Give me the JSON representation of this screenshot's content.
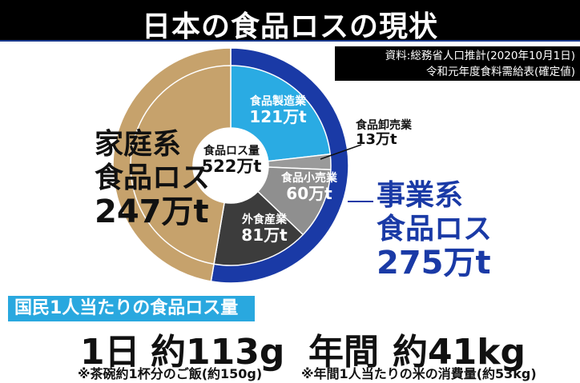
{
  "title": "日本の食品ロスの現状",
  "source": {
    "line1": "資料:総務省人口推計(2020年10月1日)",
    "line2": "令和元年度食料需給表(確定値)"
  },
  "chart_data": {
    "type": "pie",
    "style": "nested-donut",
    "center_label": "食品ロス量",
    "center_value": "522万t",
    "total": 522,
    "unit": "万t",
    "outer_ring": [
      {
        "name": "事業系\n食品ロス",
        "label_line1": "事業系",
        "label_line2": "食品ロス",
        "value": 275,
        "value_label": "275万t",
        "color": "#1a3aa6"
      },
      {
        "name": "家庭系\n食品ロス",
        "label_line1": "家庭系",
        "label_line2": "食品ロス",
        "value": 247,
        "value_label": "247万t",
        "color": "#c6a26c"
      }
    ],
    "inner_ring": [
      {
        "name": "食品製造業",
        "value": 121,
        "value_label": "121万t",
        "color": "#2aabe3"
      },
      {
        "name": "食品卸売業",
        "value": 13,
        "value_label": "13万t",
        "color": "#9a9a9a"
      },
      {
        "name": "食品小売業",
        "value": 60,
        "value_label": "60万t",
        "color": "#8f8f8f"
      },
      {
        "name": "外食産業",
        "value": 81,
        "value_label": "81万t",
        "color": "#3c3c3c"
      },
      {
        "name": "家庭系",
        "value": 247,
        "value_label": "",
        "color": "#c6a26c"
      }
    ]
  },
  "per_person": {
    "header": "国民1人当たりの食品ロス量",
    "daily_label": "1日",
    "daily_value": "約113g",
    "daily_note": "※茶碗約1杯分のご飯(約150g)",
    "annual_label": "年間",
    "annual_value": "約41kg",
    "annual_note": "※年間1人当たりの米の消費量(約53kg)"
  }
}
